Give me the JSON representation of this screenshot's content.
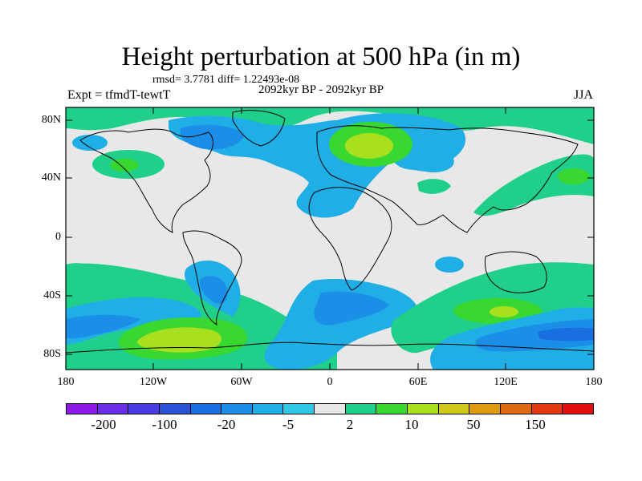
{
  "title": "Height perturbation at 500 hPa (in m)",
  "stats": "rmsd= 3.7781 diff= 1.22493e-08",
  "experiment": "Expt = tfmdT-tewtT",
  "period": "2092kyr BP - 2092kyr BP",
  "season": "JJA",
  "lat_labels": [
    "80N",
    "40N",
    "0",
    "40S",
    "80S"
  ],
  "lon_labels": [
    "180",
    "120W",
    "60W",
    "0",
    "60E",
    "120E",
    "180"
  ],
  "colorbar": {
    "colors": [
      "#8c1bea",
      "#6b2fe8",
      "#4a3ce0",
      "#2a52d6",
      "#1a6fe0",
      "#1b8fe8",
      "#20aee6",
      "#30c8e4",
      "#e8e8e8",
      "#20d08a",
      "#38d830",
      "#a8e020",
      "#d0c81a",
      "#e09a12",
      "#e06a10",
      "#e03a0e",
      "#e00e0e"
    ],
    "labels": [
      "-200",
      "-100",
      "-20",
      "-5",
      "2",
      "10",
      "50",
      "150"
    ]
  },
  "colors": {
    "land_bg": "#e8e8e8",
    "blue_light": "#20aee6",
    "blue_mid": "#1b8fe8",
    "blue_dark": "#1a6fe0",
    "green_teal": "#20d08a",
    "green": "#38d830",
    "yellow_green": "#a8e020"
  }
}
